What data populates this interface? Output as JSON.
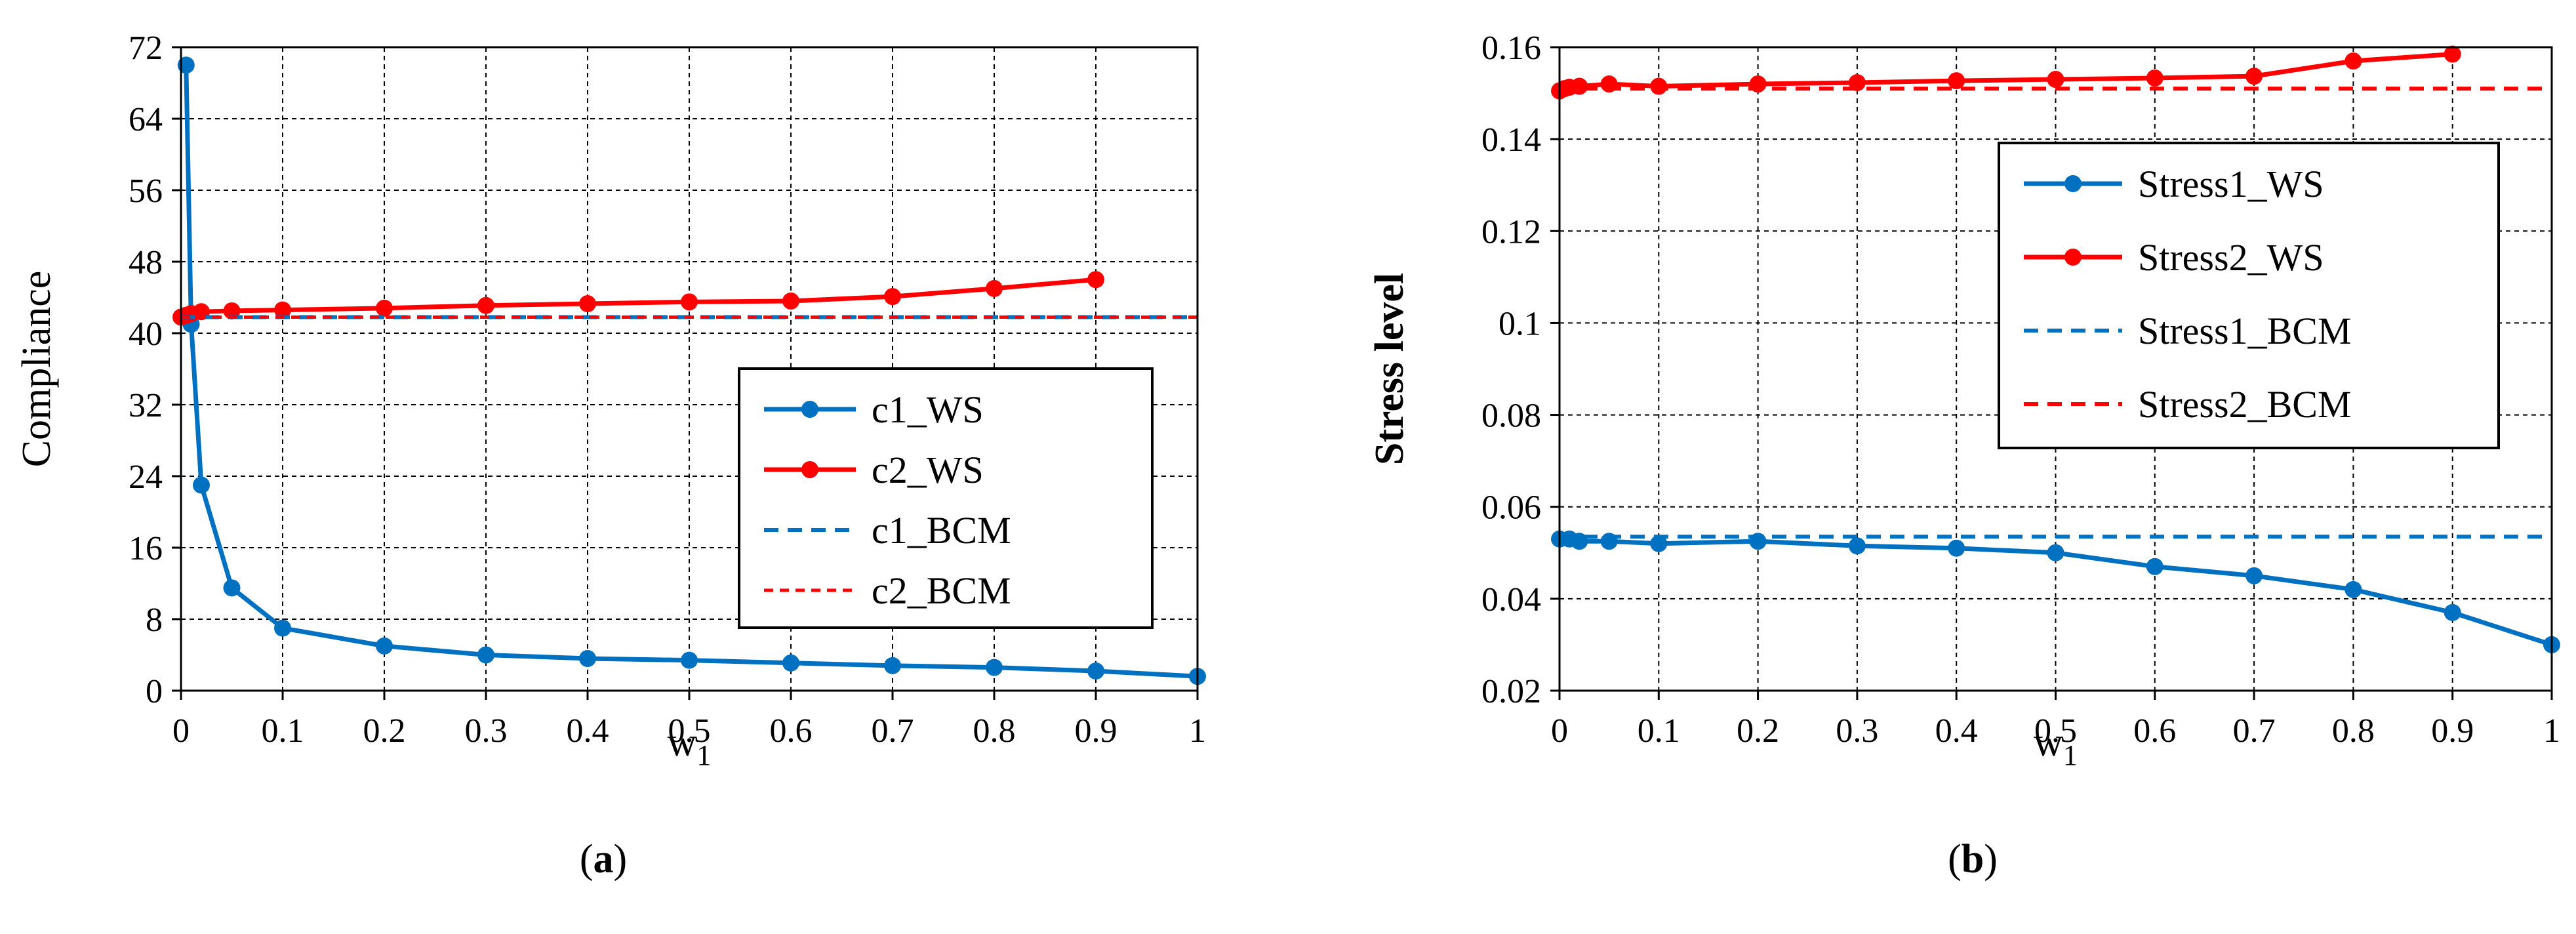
{
  "figures": [
    {
      "id": "a",
      "caption_open": "(",
      "caption_letter": "a",
      "caption_close": ")"
    },
    {
      "id": "b",
      "caption_open": "(",
      "caption_letter": "b",
      "caption_close": ")"
    }
  ],
  "chart_data": [
    {
      "type": "line",
      "title": "",
      "xlabel_main": "w",
      "xlabel_sub": "1",
      "ylabel": "Compliance",
      "ylabel_bold": false,
      "xlim": [
        0,
        1
      ],
      "ylim": [
        0,
        72
      ],
      "xticks": [
        0,
        0.1,
        0.2,
        0.3,
        0.4,
        0.5,
        0.6,
        0.7,
        0.8,
        0.9,
        1
      ],
      "xtick_labels": [
        "0",
        "0.1",
        "0.2",
        "0.3",
        "0.4",
        "0.5",
        "0.6",
        "0.7",
        "0.8",
        "0.9",
        "1"
      ],
      "yticks": [
        0,
        8,
        16,
        24,
        32,
        40,
        48,
        56,
        64,
        72
      ],
      "ytick_labels": [
        "0",
        "8",
        "16",
        "24",
        "32",
        "40",
        "48",
        "56",
        "64",
        "72"
      ],
      "grid": true,
      "legend_position": "center-right",
      "series": [
        {
          "name": "c1_WS",
          "color": "#0070C0",
          "style": "solid-markers",
          "x": [
            0.005,
            0.01,
            0.02,
            0.05,
            0.1,
            0.2,
            0.3,
            0.4,
            0.5,
            0.6,
            0.7,
            0.8,
            0.9,
            1
          ],
          "values": [
            70,
            41,
            23,
            11.5,
            7,
            5,
            4,
            3.6,
            3.4,
            3.1,
            2.8,
            2.6,
            2.2,
            1.6
          ]
        },
        {
          "name": "c2_WS",
          "color": "#FF0000",
          "style": "solid-markers",
          "x": [
            0,
            0.005,
            0.01,
            0.02,
            0.05,
            0.1,
            0.2,
            0.3,
            0.4,
            0.5,
            0.6,
            0.7,
            0.8,
            0.9
          ],
          "values": [
            41.8,
            42,
            42.2,
            42.4,
            42.5,
            42.6,
            42.8,
            43.1,
            43.3,
            43.5,
            43.6,
            44.1,
            45,
            46
          ]
        },
        {
          "name": "c1_BCM",
          "color": "#0070C0",
          "style": "dashed",
          "x": [
            0,
            1
          ],
          "values": [
            41.8,
            41.8
          ]
        },
        {
          "name": "c2_BCM",
          "color": "#FF0000",
          "style": "dashed-fine",
          "x": [
            0,
            1
          ],
          "values": [
            41.8,
            41.8
          ]
        }
      ]
    },
    {
      "type": "line",
      "title": "",
      "xlabel_main": "w",
      "xlabel_sub": "1",
      "ylabel": "Stress level",
      "ylabel_bold": true,
      "xlim": [
        0,
        1
      ],
      "ylim": [
        0.02,
        0.16
      ],
      "xticks": [
        0,
        0.1,
        0.2,
        0.3,
        0.4,
        0.5,
        0.6,
        0.7,
        0.8,
        0.9,
        1
      ],
      "xtick_labels": [
        "0",
        "0.1",
        "0.2",
        "0.3",
        "0.4",
        "0.5",
        "0.6",
        "0.7",
        "0.8",
        "0.9",
        "1"
      ],
      "yticks": [
        0.02,
        0.04,
        0.06,
        0.08,
        0.1,
        0.12,
        0.14,
        0.16
      ],
      "ytick_labels": [
        "0.02",
        "0.04",
        "0.06",
        "0.08",
        "0.1",
        "0.12",
        "0.14",
        "0.16"
      ],
      "grid": true,
      "legend_position": "top-right",
      "series": [
        {
          "name": "Stress1_WS",
          "color": "#0070C0",
          "style": "solid-markers",
          "x": [
            0,
            0.01,
            0.02,
            0.05,
            0.1,
            0.2,
            0.3,
            0.4,
            0.5,
            0.6,
            0.7,
            0.8,
            0.9,
            1
          ],
          "values": [
            0.053,
            0.053,
            0.0525,
            0.0525,
            0.052,
            0.0525,
            0.0515,
            0.051,
            0.05,
            0.047,
            0.045,
            0.042,
            0.037,
            0.03
          ]
        },
        {
          "name": "Stress2_WS",
          "color": "#FF0000",
          "style": "solid-markers",
          "x": [
            0,
            0.005,
            0.01,
            0.02,
            0.05,
            0.1,
            0.2,
            0.3,
            0.4,
            0.5,
            0.6,
            0.7,
            0.8,
            0.9
          ],
          "values": [
            0.1505,
            0.151,
            0.1513,
            0.1515,
            0.152,
            0.1515,
            0.152,
            0.1523,
            0.1527,
            0.153,
            0.1533,
            0.1537,
            0.157,
            0.1585
          ]
        },
        {
          "name": "Stress1_BCM",
          "color": "#0070C0",
          "style": "dashed",
          "x": [
            0,
            1
          ],
          "values": [
            0.0535,
            0.0535
          ]
        },
        {
          "name": "Stress2_BCM",
          "color": "#FF0000",
          "style": "dashed",
          "x": [
            0,
            1
          ],
          "values": [
            0.151,
            0.151
          ]
        }
      ]
    }
  ]
}
